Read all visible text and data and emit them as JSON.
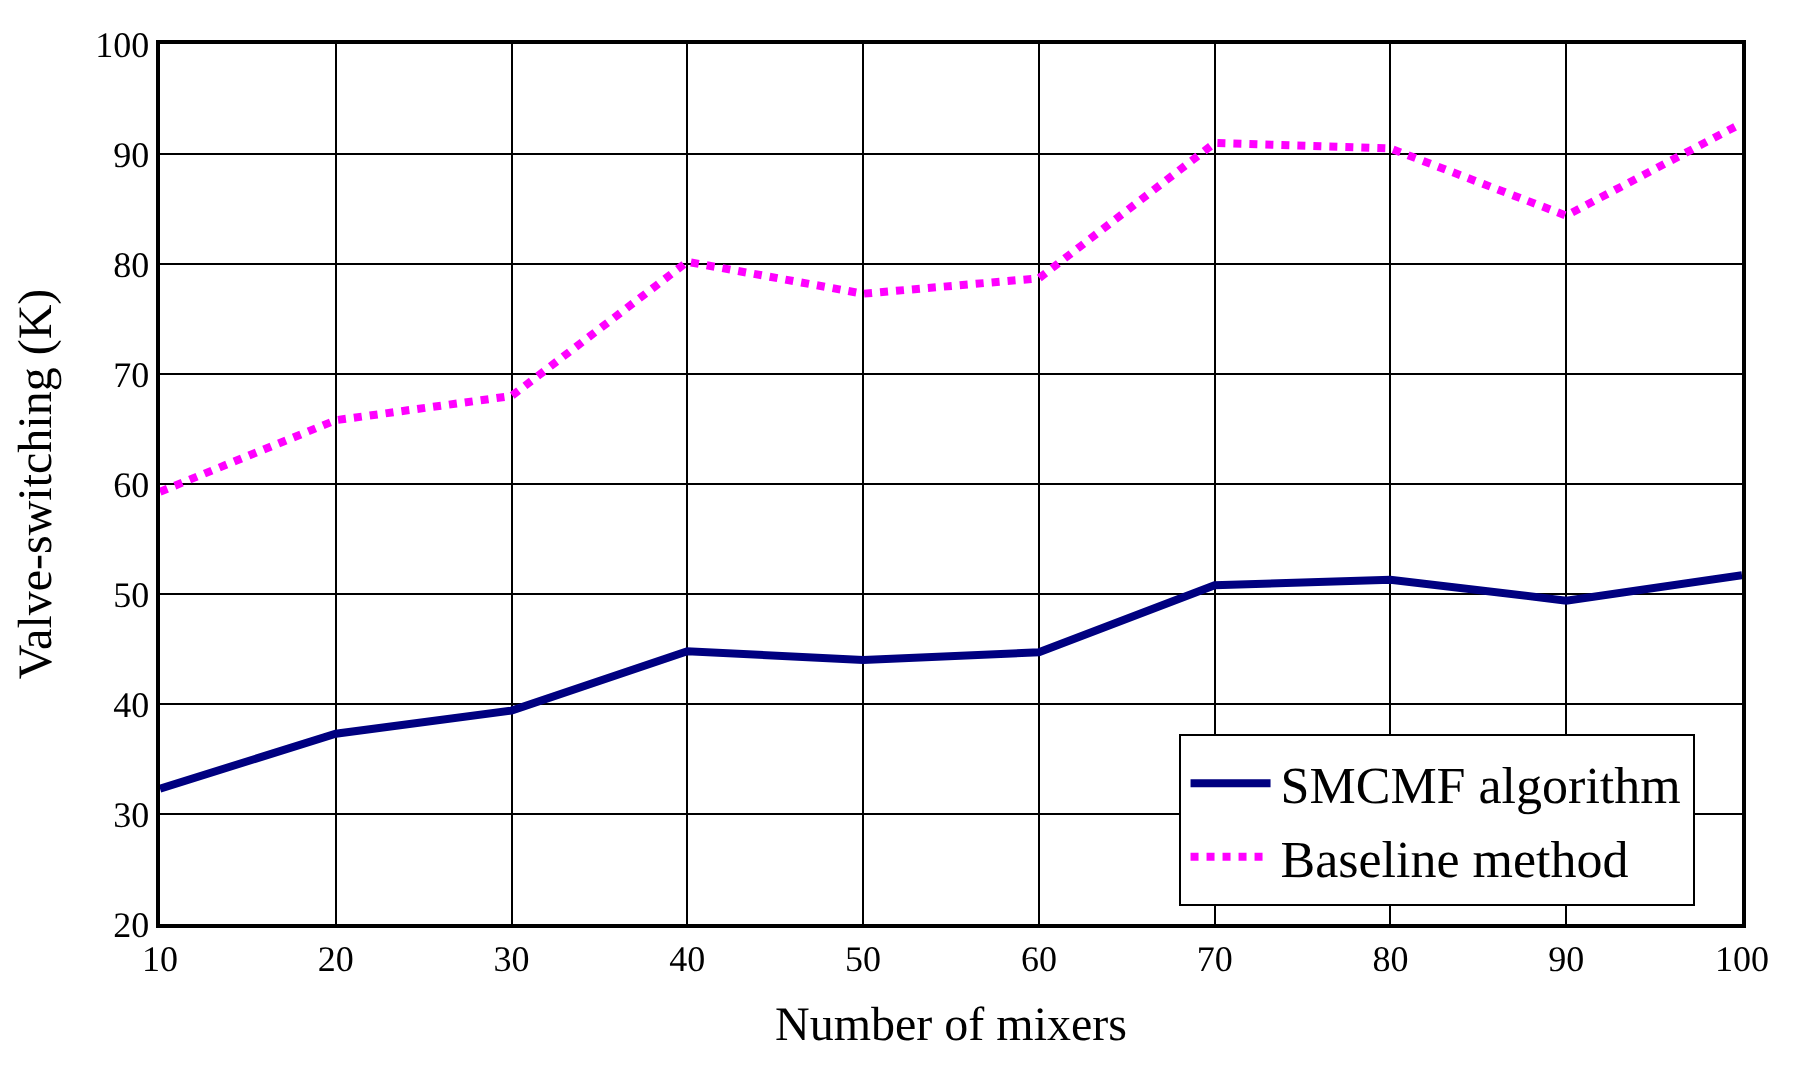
{
  "chart_data": {
    "type": "line",
    "xlabel": "Number of mixers",
    "ylabel": "Valve-switching (K)",
    "x": [
      10,
      20,
      30,
      40,
      50,
      60,
      70,
      80,
      90,
      100
    ],
    "series": [
      {
        "name": "SMCMF algorithm",
        "color": "#000080",
        "line_style": "solid",
        "values": [
          32.3,
          37.3,
          39.4,
          44.8,
          44.0,
          44.7,
          50.8,
          51.3,
          49.4,
          51.7
        ]
      },
      {
        "name": "Baseline method",
        "color": "#ff00ff",
        "line_style": "dotted",
        "values": [
          59.3,
          65.8,
          68.0,
          80.2,
          77.3,
          78.7,
          91.0,
          90.5,
          84.4,
          92.8
        ]
      }
    ],
    "xlim": [
      10,
      100
    ],
    "xticks": [
      10,
      20,
      30,
      40,
      50,
      60,
      70,
      80,
      90,
      100
    ],
    "ylim": [
      20,
      100
    ],
    "yticks": [
      20,
      30,
      40,
      50,
      60,
      70,
      80,
      90,
      100
    ],
    "grid": true,
    "legend": "bottom right",
    "marker": "none"
  }
}
